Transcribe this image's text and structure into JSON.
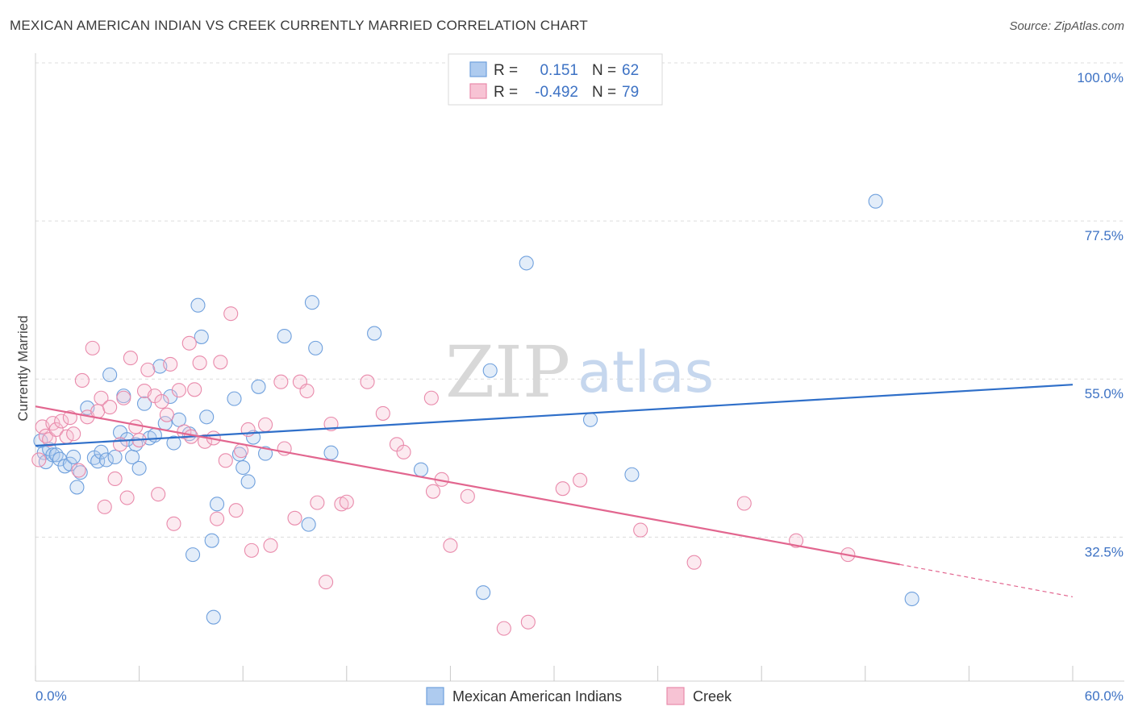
{
  "title": "MEXICAN AMERICAN INDIAN VS CREEK CURRENTLY MARRIED CORRELATION CHART",
  "source": "Source: ZipAtlas.com",
  "watermark": {
    "zip": "ZIP",
    "atlas": "atlas"
  },
  "legend": {
    "series1": {
      "r_label": "R =",
      "r_value": "0.151",
      "n_label": "N =",
      "n_value": "62"
    },
    "series2": {
      "r_label": "R =",
      "r_value": "-0.492",
      "n_label": "N =",
      "n_value": "79"
    }
  },
  "bottom_legend": [
    "Mexican American Indians",
    "Creek"
  ],
  "colors": {
    "blue": "#6fa0dd",
    "blue_fill": "#aecbef",
    "blue_line": "#2f6fc9",
    "pink": "#e98aab",
    "pink_fill": "#f7c3d4",
    "pink_line": "#e2668f",
    "tick_text": "#3d72c4"
  },
  "chart_data": {
    "type": "scatter",
    "xlabel": "",
    "ylabel": "Currently Married",
    "xlim": [
      0,
      60
    ],
    "ylim": [
      12,
      100
    ],
    "x_tick_labels": [
      "0.0%",
      "60.0%"
    ],
    "y_ticks": [
      32.5,
      55.0,
      77.5,
      100.0
    ],
    "y_tick_labels": [
      "32.5%",
      "55.0%",
      "77.5%",
      "100.0%"
    ],
    "grid": true,
    "series": [
      {
        "name": "Mexican American Indians",
        "color": "#6fa0dd",
        "trend": {
          "x0": 0,
          "y0": 45.5,
          "x1": 60,
          "y1": 54.2
        },
        "points": [
          [
            0.3,
            46.2
          ],
          [
            0.5,
            44.5
          ],
          [
            0.6,
            43.2
          ],
          [
            0.8,
            45.0
          ],
          [
            1.0,
            44.2
          ],
          [
            1.2,
            44.2
          ],
          [
            1.4,
            43.6
          ],
          [
            1.7,
            42.6
          ],
          [
            2.0,
            42.9
          ],
          [
            2.2,
            43.9
          ],
          [
            2.4,
            39.6
          ],
          [
            2.6,
            41.7
          ],
          [
            3.0,
            50.9
          ],
          [
            3.4,
            43.8
          ],
          [
            3.6,
            43.3
          ],
          [
            3.8,
            44.6
          ],
          [
            4.1,
            43.5
          ],
          [
            4.3,
            55.6
          ],
          [
            4.6,
            43.9
          ],
          [
            4.9,
            47.4
          ],
          [
            5.1,
            52.6
          ],
          [
            5.3,
            46.4
          ],
          [
            5.6,
            43.9
          ],
          [
            5.8,
            45.7
          ],
          [
            6.0,
            42.3
          ],
          [
            6.3,
            51.5
          ],
          [
            6.6,
            46.6
          ],
          [
            6.9,
            47.0
          ],
          [
            7.2,
            56.8
          ],
          [
            7.5,
            48.7
          ],
          [
            7.8,
            52.5
          ],
          [
            8.0,
            45.9
          ],
          [
            8.3,
            49.2
          ],
          [
            8.9,
            47.2
          ],
          [
            9.1,
            30.0
          ],
          [
            9.4,
            65.5
          ],
          [
            9.6,
            61.0
          ],
          [
            9.9,
            49.6
          ],
          [
            10.2,
            32.0
          ],
          [
            10.3,
            21.1
          ],
          [
            10.5,
            37.2
          ],
          [
            11.5,
            52.2
          ],
          [
            11.8,
            44.3
          ],
          [
            12.0,
            42.4
          ],
          [
            12.3,
            40.4
          ],
          [
            12.6,
            46.7
          ],
          [
            12.9,
            53.9
          ],
          [
            13.3,
            44.4
          ],
          [
            14.4,
            61.1
          ],
          [
            15.8,
            34.3
          ],
          [
            16.0,
            65.9
          ],
          [
            16.2,
            59.4
          ],
          [
            17.1,
            44.5
          ],
          [
            19.6,
            61.5
          ],
          [
            22.3,
            42.1
          ],
          [
            25.9,
            24.6
          ],
          [
            26.3,
            56.2
          ],
          [
            28.4,
            71.5
          ],
          [
            32.1,
            49.2
          ],
          [
            34.5,
            41.4
          ],
          [
            48.6,
            80.3
          ],
          [
            50.7,
            23.7
          ]
        ]
      },
      {
        "name": "Creek",
        "color": "#e98aab",
        "trend": {
          "x0": 0,
          "y0": 51.1,
          "x1": 50.0,
          "y1": 28.6,
          "x_dash_end": 60,
          "y_dash_end": 24.0
        },
        "points": [
          [
            0.2,
            43.5
          ],
          [
            0.4,
            48.2
          ],
          [
            0.6,
            46.9
          ],
          [
            0.8,
            46.4
          ],
          [
            1.0,
            48.7
          ],
          [
            1.2,
            47.8
          ],
          [
            1.5,
            49.0
          ],
          [
            1.8,
            46.8
          ],
          [
            2.0,
            49.5
          ],
          [
            2.2,
            47.2
          ],
          [
            2.5,
            42.0
          ],
          [
            2.7,
            54.8
          ],
          [
            3.0,
            49.6
          ],
          [
            3.3,
            59.4
          ],
          [
            3.6,
            50.4
          ],
          [
            3.8,
            52.3
          ],
          [
            4.0,
            36.8
          ],
          [
            4.3,
            51.0
          ],
          [
            4.6,
            40.8
          ],
          [
            4.9,
            45.7
          ],
          [
            5.1,
            52.3
          ],
          [
            5.3,
            38.1
          ],
          [
            5.5,
            58.0
          ],
          [
            5.8,
            48.2
          ],
          [
            6.0,
            46.3
          ],
          [
            6.3,
            53.3
          ],
          [
            6.5,
            56.3
          ],
          [
            6.9,
            52.6
          ],
          [
            7.1,
            38.6
          ],
          [
            7.3,
            51.8
          ],
          [
            7.6,
            49.9
          ],
          [
            7.8,
            57.1
          ],
          [
            8.0,
            34.4
          ],
          [
            8.3,
            53.4
          ],
          [
            8.6,
            47.5
          ],
          [
            8.9,
            60.1
          ],
          [
            9.2,
            53.5
          ],
          [
            9.5,
            57.3
          ],
          [
            9.8,
            46.1
          ],
          [
            10.3,
            46.6
          ],
          [
            10.5,
            35.1
          ],
          [
            10.7,
            57.4
          ],
          [
            11.0,
            43.4
          ],
          [
            11.3,
            64.3
          ],
          [
            11.6,
            36.3
          ],
          [
            11.9,
            44.8
          ],
          [
            12.3,
            47.8
          ],
          [
            12.5,
            30.6
          ],
          [
            13.3,
            48.5
          ],
          [
            13.6,
            31.3
          ],
          [
            14.2,
            54.6
          ],
          [
            14.4,
            45.1
          ],
          [
            15.0,
            35.2
          ],
          [
            15.3,
            54.6
          ],
          [
            15.7,
            53.3
          ],
          [
            16.3,
            37.4
          ],
          [
            16.8,
            26.1
          ],
          [
            17.1,
            48.6
          ],
          [
            17.7,
            37.2
          ],
          [
            19.2,
            54.6
          ],
          [
            20.1,
            50.1
          ],
          [
            20.9,
            45.7
          ],
          [
            21.3,
            44.6
          ],
          [
            22.9,
            52.3
          ],
          [
            23.0,
            39.0
          ],
          [
            23.5,
            40.7
          ],
          [
            24.0,
            31.3
          ],
          [
            25.0,
            38.3
          ],
          [
            27.1,
            19.5
          ],
          [
            28.5,
            20.4
          ],
          [
            30.5,
            39.4
          ],
          [
            31.5,
            40.6
          ],
          [
            38.1,
            28.9
          ],
          [
            41.0,
            37.3
          ],
          [
            44.0,
            32.0
          ],
          [
            47.0,
            30.0
          ],
          [
            35.0,
            33.5
          ],
          [
            18.0,
            37.5
          ],
          [
            9.0,
            46.8
          ]
        ]
      }
    ]
  }
}
